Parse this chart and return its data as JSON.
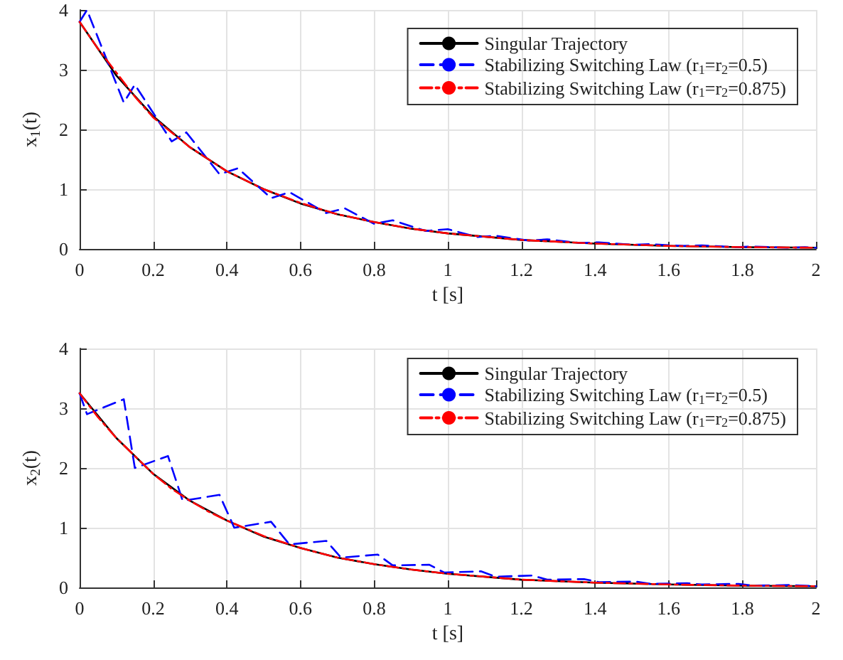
{
  "chart_data": [
    {
      "type": "line",
      "xlabel": "t [s]",
      "ylabel": "x$_{1}$(t)",
      "xlim": [
        0,
        2
      ],
      "xticks": [
        0,
        0.2,
        0.4,
        0.6,
        0.8,
        1,
        1.2,
        1.4,
        1.6,
        1.8,
        2
      ],
      "ylim": [
        0,
        4
      ],
      "yticks": [
        0,
        1,
        2,
        3,
        4
      ],
      "grid": true,
      "legend": "top right",
      "series": [
        {
          "name": "Singular Trajectory",
          "color": "#000000",
          "line_style": "solid",
          "x": [
            0,
            0.1,
            0.2,
            0.3,
            0.4,
            0.5,
            0.6,
            0.7,
            0.8,
            0.9,
            1,
            1.2,
            1.4,
            1.6,
            1.8,
            2
          ],
          "values": [
            3.8,
            2.9,
            2.22,
            1.7,
            1.3,
            1.0,
            0.76,
            0.58,
            0.45,
            0.34,
            0.26,
            0.15,
            0.09,
            0.05,
            0.03,
            0.02
          ]
        },
        {
          "name": "Stabilizing Switching Law (r$_{1}$=r$_{2}$=0.5)",
          "color": "#0000ff",
          "line_style": "dashed",
          "x": [
            0,
            0.02,
            0.12,
            0.15,
            0.25,
            0.29,
            0.38,
            0.43,
            0.52,
            0.57,
            0.67,
            0.72,
            0.8,
            0.85,
            0.94,
            1.0,
            1.08,
            1.13,
            1.22,
            1.27,
            1.36,
            1.41,
            1.5,
            1.55,
            1.64,
            1.69,
            1.78,
            1.83,
            1.92,
            1.97,
            2.0
          ],
          "values": [
            3.8,
            4.0,
            2.45,
            2.75,
            1.8,
            1.95,
            1.25,
            1.35,
            0.85,
            0.95,
            0.6,
            0.68,
            0.42,
            0.48,
            0.3,
            0.33,
            0.2,
            0.22,
            0.14,
            0.16,
            0.1,
            0.11,
            0.07,
            0.08,
            0.05,
            0.06,
            0.03,
            0.04,
            0.02,
            0.03,
            0.02
          ]
        },
        {
          "name": "Stabilizing Switching Law (r$_{1}$=r$_{2}$=0.875)",
          "color": "#ff0000",
          "line_style": "dashdot",
          "x": [
            0,
            0.05,
            0.1,
            0.15,
            0.2,
            0.25,
            0.3,
            0.35,
            0.4,
            0.5,
            0.6,
            0.7,
            0.8,
            0.9,
            1,
            1.2,
            1.4,
            1.6,
            1.8,
            2
          ],
          "values": [
            3.8,
            3.35,
            2.95,
            2.55,
            2.2,
            1.95,
            1.7,
            1.5,
            1.3,
            1.0,
            0.77,
            0.58,
            0.45,
            0.34,
            0.26,
            0.15,
            0.09,
            0.05,
            0.03,
            0.02
          ]
        }
      ]
    },
    {
      "type": "line",
      "xlabel": "t [s]",
      "ylabel": "x$_{2}$(t)",
      "xlim": [
        0,
        2
      ],
      "xticks": [
        0,
        0.2,
        0.4,
        0.6,
        0.8,
        1,
        1.2,
        1.4,
        1.6,
        1.8,
        2
      ],
      "ylim": [
        0,
        4
      ],
      "yticks": [
        0,
        1,
        2,
        3,
        4
      ],
      "grid": true,
      "legend": "top right",
      "series": [
        {
          "name": "Singular Trajectory",
          "color": "#000000",
          "line_style": "solid",
          "x": [
            0,
            0.1,
            0.2,
            0.3,
            0.4,
            0.5,
            0.6,
            0.7,
            0.8,
            0.9,
            1,
            1.2,
            1.4,
            1.6,
            1.8,
            2
          ],
          "values": [
            3.25,
            2.5,
            1.9,
            1.45,
            1.12,
            0.85,
            0.66,
            0.5,
            0.39,
            0.3,
            0.23,
            0.13,
            0.08,
            0.05,
            0.03,
            0.02
          ]
        },
        {
          "name": "Stabilizing Switching Law (r$_{1}$=r$_{2}$=0.5)",
          "color": "#0000ff",
          "line_style": "dashed",
          "x": [
            0,
            0.02,
            0.12,
            0.15,
            0.24,
            0.28,
            0.38,
            0.42,
            0.52,
            0.57,
            0.67,
            0.71,
            0.81,
            0.85,
            0.95,
            0.99,
            1.09,
            1.13,
            1.23,
            1.27,
            1.37,
            1.41,
            1.51,
            1.55,
            1.65,
            1.69,
            1.79,
            1.83,
            1.93,
            2.0
          ],
          "values": [
            3.25,
            2.9,
            3.15,
            2.0,
            2.2,
            1.45,
            1.55,
            1.0,
            1.1,
            0.72,
            0.78,
            0.5,
            0.55,
            0.37,
            0.38,
            0.25,
            0.27,
            0.18,
            0.2,
            0.13,
            0.14,
            0.09,
            0.1,
            0.06,
            0.07,
            0.05,
            0.06,
            0.03,
            0.04,
            0.02
          ]
        },
        {
          "name": "Stabilizing Switching Law (r$_{1}$=r$_{2}$=0.875)",
          "color": "#ff0000",
          "line_style": "dashdot",
          "x": [
            0,
            0.05,
            0.1,
            0.15,
            0.2,
            0.25,
            0.3,
            0.35,
            0.4,
            0.5,
            0.6,
            0.7,
            0.8,
            0.9,
            1,
            1.2,
            1.4,
            1.6,
            1.8,
            2
          ],
          "values": [
            3.25,
            2.85,
            2.5,
            2.2,
            1.9,
            1.65,
            1.45,
            1.27,
            1.12,
            0.86,
            0.66,
            0.5,
            0.39,
            0.3,
            0.23,
            0.13,
            0.08,
            0.05,
            0.03,
            0.02
          ]
        }
      ]
    }
  ]
}
